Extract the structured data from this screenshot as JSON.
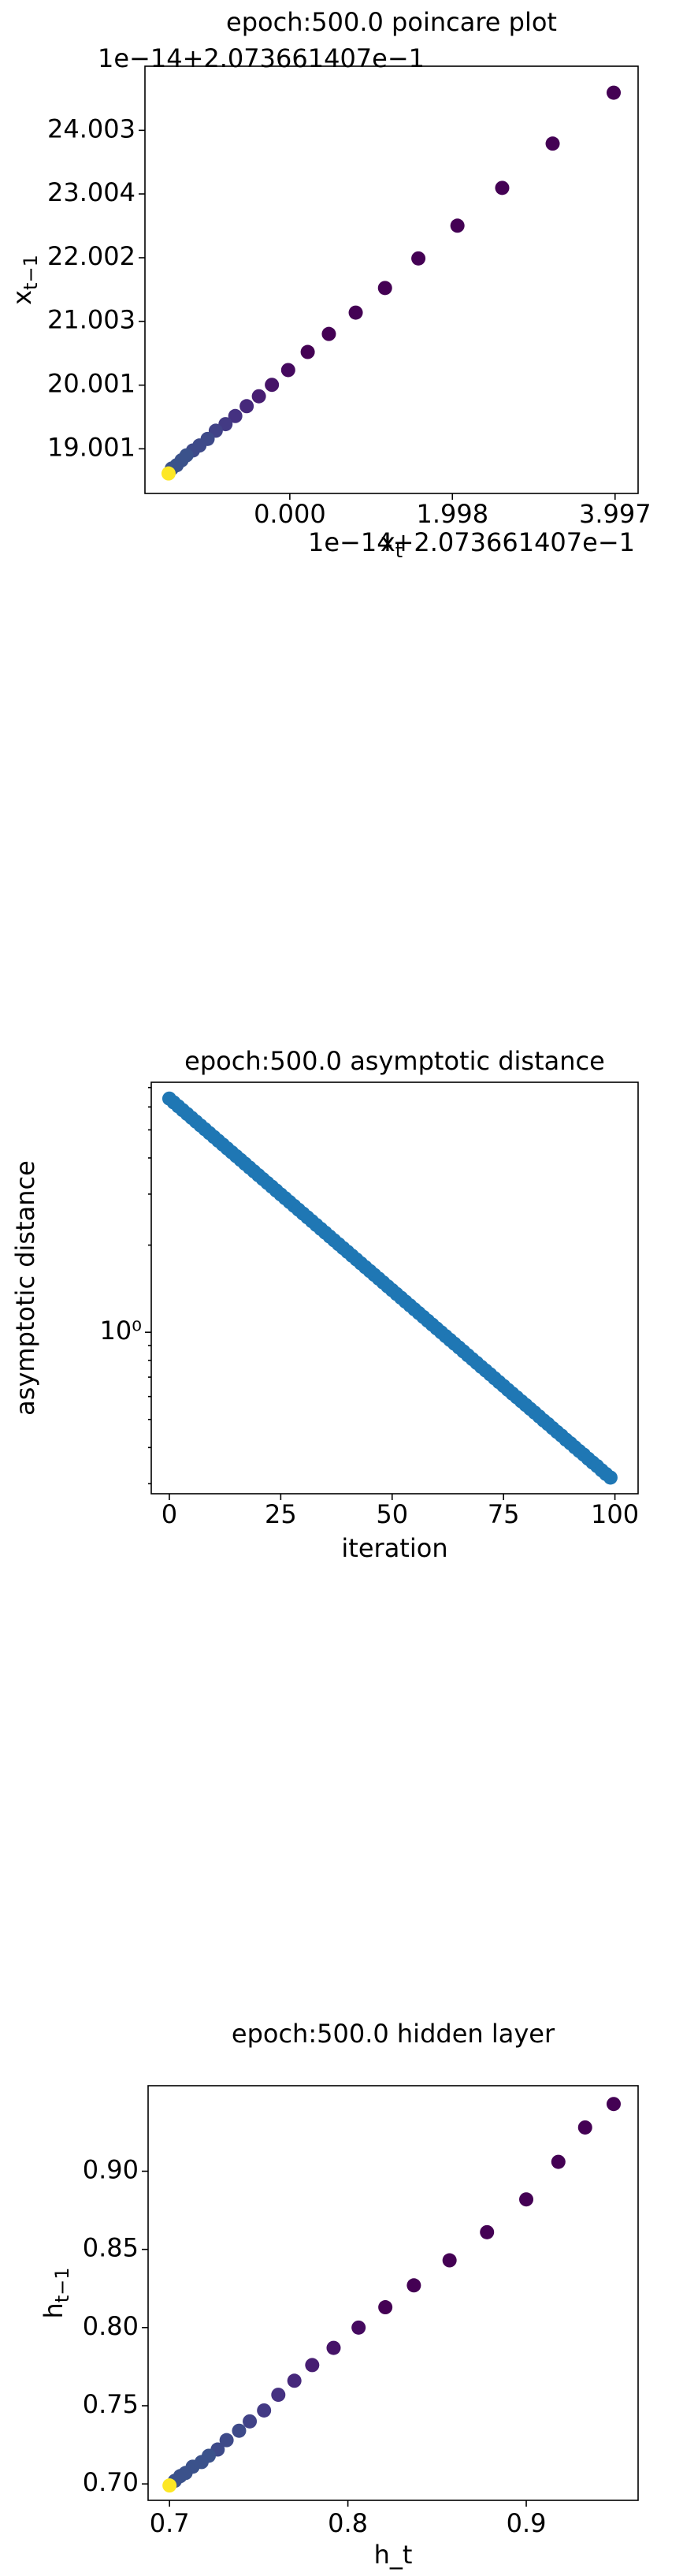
{
  "chart_data": [
    {
      "type": "scatter",
      "title": "epoch:500.0 poincare plot",
      "xlabel": {
        "text": "x",
        "subscript": "t"
      },
      "ylabel": {
        "text": "x",
        "subscript": "t−1"
      },
      "x_offset": "1e−14+2.073661407e−1",
      "y_offset": "1e−14+2.073661407e−1",
      "x": [
        3.98,
        3.23,
        2.61,
        2.06,
        1.58,
        1.17,
        0.81,
        0.48,
        0.22,
        -0.02,
        -0.22,
        -0.38,
        -0.53,
        -0.67,
        -0.79,
        -0.91,
        -1.01,
        -1.11,
        -1.19,
        -1.27,
        -1.33,
        -1.39,
        -1.45,
        -1.49
      ],
      "y": [
        24.594,
        23.795,
        23.099,
        22.506,
        21.991,
        21.527,
        21.14,
        20.805,
        20.522,
        20.238,
        20.006,
        19.826,
        19.671,
        19.516,
        19.388,
        19.285,
        19.156,
        19.053,
        18.975,
        18.898,
        18.821,
        18.743,
        18.692,
        18.614
      ],
      "colors": [
        "#440154",
        "#440154",
        "#440154",
        "#440154",
        "#440154",
        "#440154",
        "#440154",
        "#440154",
        "#440154",
        "#45095f",
        "#461468",
        "#471e72",
        "#46287b",
        "#453181",
        "#433a84",
        "#414287",
        "#3e4a89",
        "#3e4a89",
        "#3e4a89",
        "#3b528b",
        "#3b528b",
        "#3b528b",
        "#3b528b",
        "#fde725"
      ],
      "xlim": [
        -1.78,
        4.28
      ],
      "ylim": [
        18.3,
        25.01
      ],
      "xticks": [
        {
          "value": 0,
          "label": "0.000"
        },
        1.998,
        3.997
      ],
      "yticks": [
        19.001,
        20.001,
        21.003,
        22.002,
        23.004,
        24.003
      ]
    },
    {
      "type": "scatter",
      "title": "epoch:500.0 asymptotic distance",
      "xlabel": "iteration",
      "ylabel": "asymptotic distance",
      "yscale": "log",
      "color": "#1f77b4",
      "x": [
        0,
        1,
        2,
        3,
        4,
        5,
        6,
        7,
        8,
        9,
        10,
        11,
        12,
        13,
        14,
        15,
        16,
        17,
        18,
        19,
        20,
        21,
        22,
        23,
        24,
        25,
        26,
        27,
        28,
        29,
        30,
        31,
        32,
        33,
        34,
        35,
        36,
        37,
        38,
        39,
        40,
        41,
        42,
        43,
        44,
        45,
        46,
        47,
        48,
        49,
        50,
        51,
        52,
        53,
        54,
        55,
        56,
        57,
        58,
        59,
        60,
        61,
        62,
        63,
        64,
        65,
        66,
        67,
        68,
        69,
        70,
        71,
        72,
        73,
        74,
        75,
        76,
        77,
        78,
        79,
        80,
        81,
        82,
        83,
        84,
        85,
        86,
        87,
        88,
        89,
        90,
        91,
        92,
        93,
        94,
        95,
        96,
        97,
        98,
        99
      ],
      "y": [
        6.41,
        6.218,
        6.031,
        5.85,
        5.675,
        5.504,
        5.339,
        5.179,
        5.024,
        4.873,
        4.727,
        4.585,
        4.448,
        4.314,
        4.185,
        4.059,
        3.938,
        3.819,
        3.705,
        3.594,
        3.486,
        3.381,
        3.28,
        3.182,
        3.086,
        2.993,
        2.904,
        2.817,
        2.732,
        2.65,
        2.571,
        2.494,
        2.419,
        2.346,
        2.276,
        2.208,
        2.141,
        2.077,
        2.015,
        1.954,
        1.896,
        1.839,
        1.784,
        1.73,
        1.678,
        1.628,
        1.579,
        1.532,
        1.486,
        1.441,
        1.398,
        1.356,
        1.316,
        1.276,
        1.238,
        1.201,
        1.165,
        1.13,
        1.096,
        1.063,
        1.031,
        1.0,
        0.97,
        0.941,
        0.913,
        0.886,
        0.859,
        0.833,
        0.808,
        0.784,
        0.76,
        0.738,
        0.716,
        0.694,
        0.673,
        0.653,
        0.633,
        0.614,
        0.596,
        0.578,
        0.561,
        0.544,
        0.528,
        0.512,
        0.496,
        0.482,
        0.467,
        0.453,
        0.44,
        0.426,
        0.414,
        0.401,
        0.389,
        0.378,
        0.366,
        0.355,
        0.345,
        0.334,
        0.324,
        0.315
      ],
      "xlim": [
        -4.06,
        105.2
      ],
      "ylim": [
        0.277,
        7.3
      ],
      "xticks": [
        0,
        25,
        50,
        75,
        100
      ],
      "yticks": [
        {
          "value": 1,
          "label": "10⁰"
        }
      ],
      "yminorticks": [
        0.3,
        0.4,
        0.5,
        0.6,
        0.7,
        0.8,
        0.9,
        2,
        3,
        4,
        5,
        6,
        7
      ]
    },
    {
      "type": "scatter",
      "title": "epoch:500.0 hidden layer",
      "xlabel": "h_t",
      "ylabel": {
        "text": "h",
        "subscript": "t−1"
      },
      "x": [
        0.949,
        0.933,
        0.918,
        0.9,
        0.878,
        0.857,
        0.837,
        0.821,
        0.806,
        0.792,
        0.78,
        0.77,
        0.761,
        0.753,
        0.745,
        0.739,
        0.732,
        0.727,
        0.722,
        0.718,
        0.713,
        0.709,
        0.706,
        0.703,
        0.7
      ],
      "y": [
        0.943,
        0.928,
        0.906,
        0.882,
        0.861,
        0.843,
        0.827,
        0.813,
        0.8,
        0.787,
        0.776,
        0.766,
        0.757,
        0.747,
        0.74,
        0.734,
        0.728,
        0.722,
        0.718,
        0.714,
        0.711,
        0.707,
        0.705,
        0.702,
        0.699
      ],
      "colors": [
        "#440154",
        "#440154",
        "#440154",
        "#440154",
        "#440154",
        "#440154",
        "#440154",
        "#440154",
        "#45095f",
        "#461468",
        "#471e72",
        "#46287b",
        "#453181",
        "#433a84",
        "#414287",
        "#3e4a89",
        "#3e4a89",
        "#3e4a89",
        "#3b528b",
        "#3b528b",
        "#3b528b",
        "#3b528b",
        "#3b528b",
        "#3b528b",
        "#fde725"
      ],
      "xlim": [
        0.688,
        0.9627
      ],
      "ylim": [
        0.6895,
        0.9547
      ],
      "xticks": [
        0.7,
        0.8,
        0.9
      ],
      "yticks": [
        {
          "value": 0.7,
          "label": "0.70"
        },
        0.75,
        {
          "value": 0.8,
          "label": "0.80"
        },
        0.85,
        {
          "value": 0.9,
          "label": "0.90"
        }
      ]
    }
  ]
}
